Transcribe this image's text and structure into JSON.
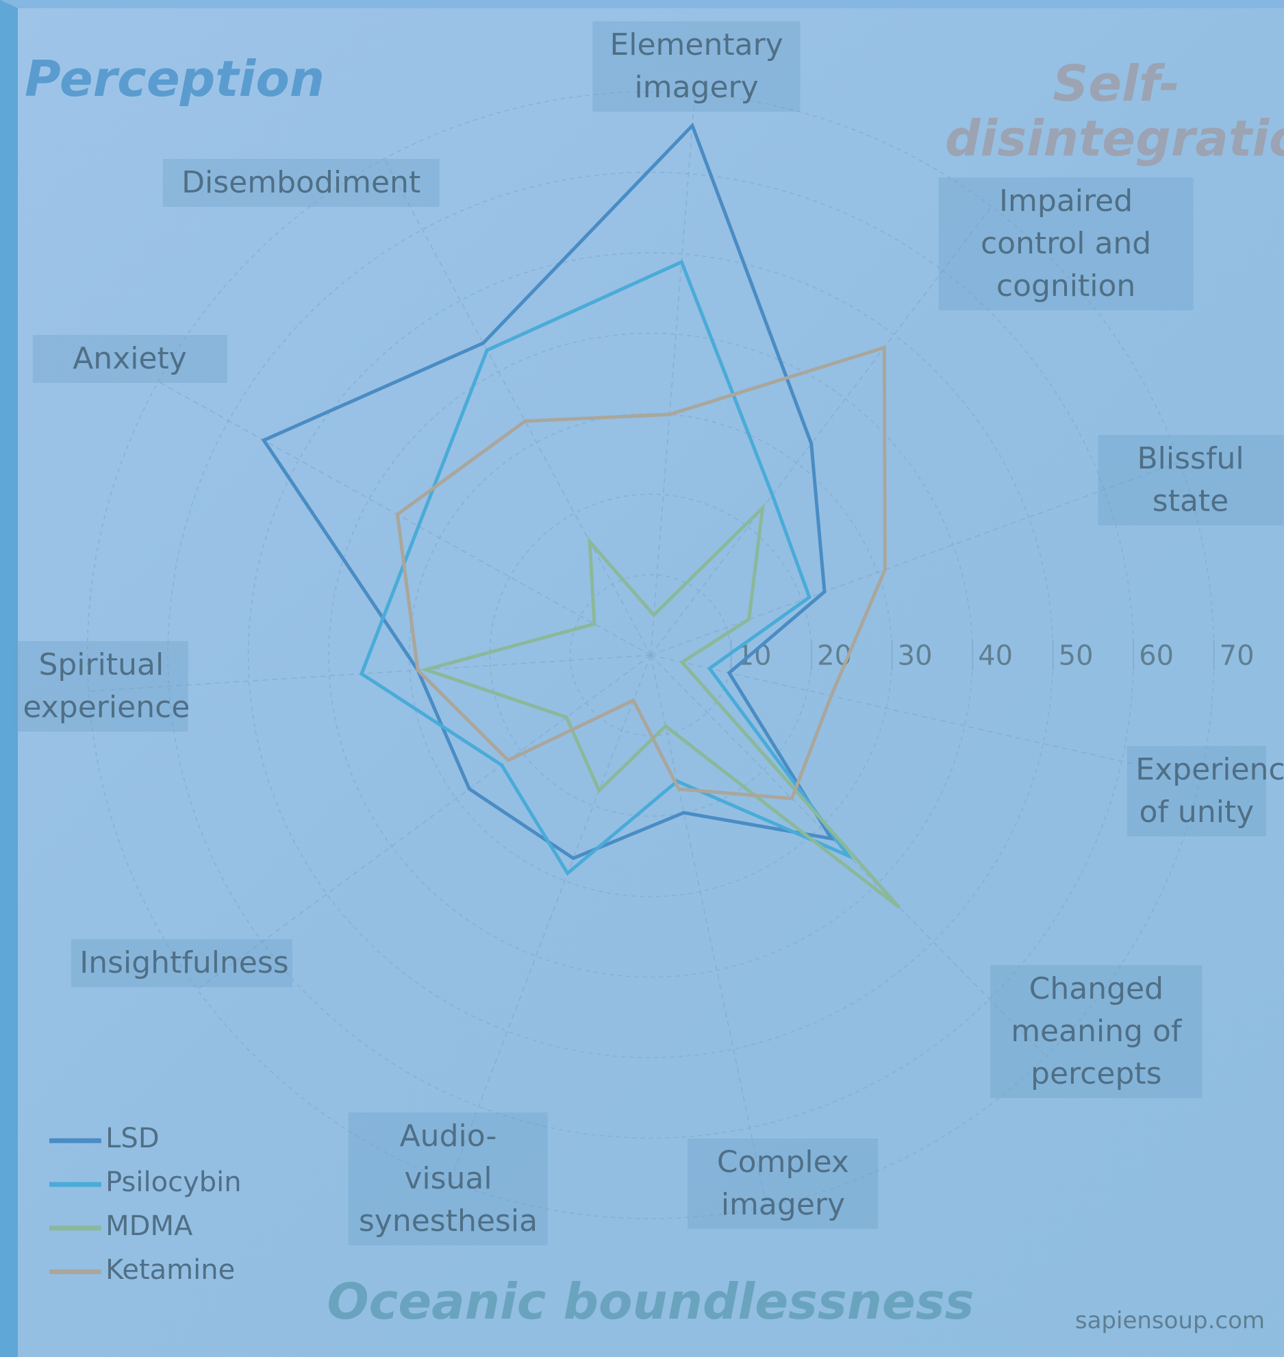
{
  "chart_data": {
    "type": "radar",
    "categories": [
      "Elementary imagery",
      "Disembodiment",
      "Impaired control and cognition",
      "Anxiety",
      "Blissful state",
      "Spiritual experience",
      "Experience of unity",
      "Insightfulness",
      "Changed meaning of percepts",
      "Audio-visual synesthesia",
      "Complex imagery"
    ],
    "series": [
      {
        "name": "LSD",
        "color": "#4a8cc4",
        "values": [
          66,
          33,
          23,
          10,
          32,
          20,
          27,
          28,
          29,
          55,
          44
        ]
      },
      {
        "name": "Psilocybin",
        "color": "#49abd8",
        "values": [
          49,
          25,
          21,
          7.5,
          35,
          16,
          29,
          23,
          36,
          33,
          43
        ]
      },
      {
        "name": "MDMA",
        "color": "#8bb89a",
        "values": [
          5,
          23,
          13,
          4,
          44,
          9,
          18,
          13,
          28,
          8,
          16
        ]
      },
      {
        "name": "Ketamine",
        "color": "#aaa69c",
        "values": [
          30,
          48,
          31,
          23,
          25,
          17,
          6,
          22,
          29,
          36,
          33
        ]
      }
    ],
    "ylim": [
      0,
      70
    ],
    "yticks": [
      10,
      20,
      30,
      40,
      50,
      60,
      70
    ],
    "grid": true,
    "annotations": [
      "Perception",
      "Self-disintegration",
      "Oceanic boundlessness"
    ],
    "source": "sapiensoup.com"
  }
}
